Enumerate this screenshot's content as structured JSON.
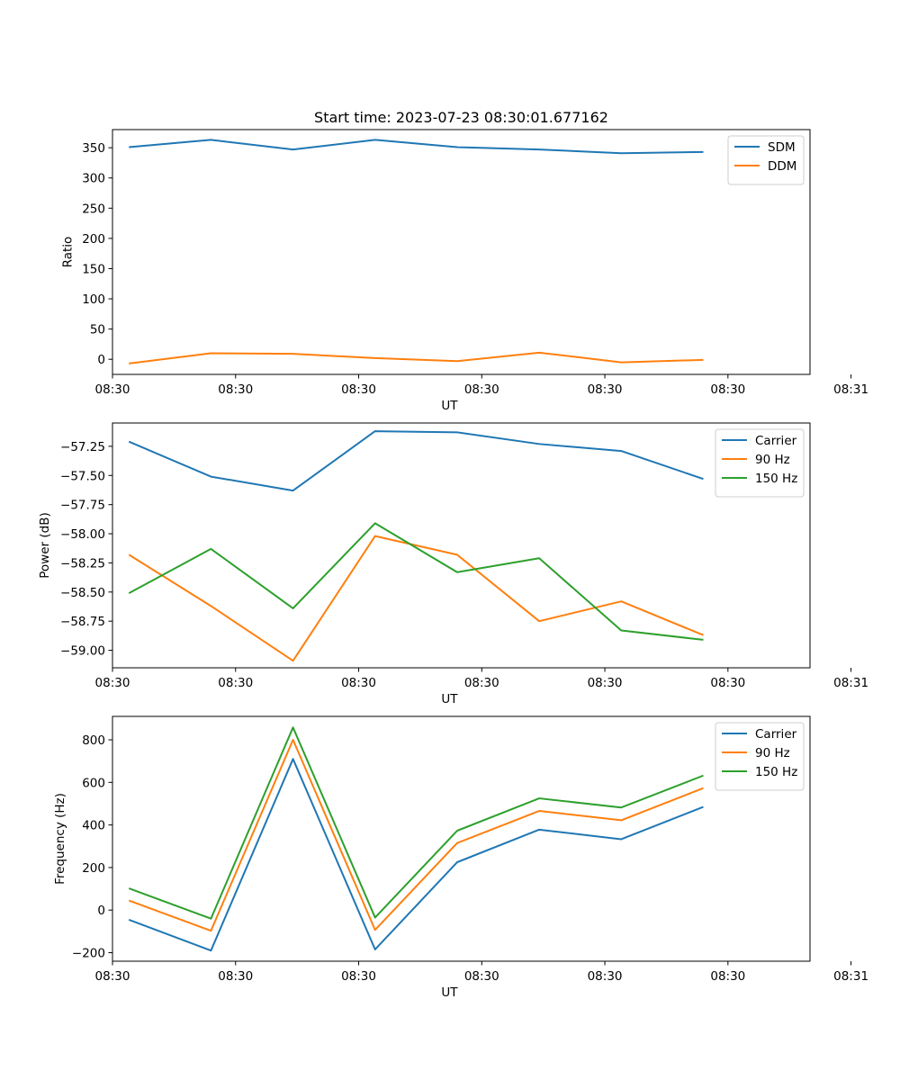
{
  "figure": {
    "title": "Start time: 2023-07-23 08:30:01.677162"
  },
  "chart_data": [
    {
      "type": "line",
      "name": "ratio",
      "xlabel": "UT",
      "ylabel": "Ratio",
      "x": [
        1,
        2,
        3,
        4,
        5,
        6,
        7,
        8
      ],
      "xlim": [
        0.8,
        9.3
      ],
      "xticks": [
        0.8,
        2.3,
        3.8,
        5.3,
        6.8,
        8.3,
        9.8
      ],
      "xtick_labels": [
        "08:30",
        "08:30",
        "08:30",
        "08:30",
        "08:30",
        "08:30",
        "08:31"
      ],
      "ylim": [
        -25,
        380
      ],
      "yticks": [
        0,
        50,
        100,
        150,
        200,
        250,
        300,
        350
      ],
      "ytick_labels": [
        "0",
        "50",
        "100",
        "150",
        "200",
        "250",
        "300",
        "350"
      ],
      "legend_position": "top-right",
      "series": [
        {
          "name": "SDM",
          "color": "#1f77b4",
          "values": [
            351,
            363,
            347,
            363,
            351,
            347,
            341,
            343
          ]
        },
        {
          "name": "DDM",
          "color": "#ff7f0e",
          "values": [
            -7,
            10,
            9,
            2,
            -3,
            11,
            -5,
            -1
          ]
        }
      ]
    },
    {
      "type": "line",
      "name": "power",
      "xlabel": "UT",
      "ylabel": "Power (dB)",
      "x": [
        1,
        2,
        3,
        4,
        5,
        6,
        7,
        8
      ],
      "xlim": [
        0.8,
        9.3
      ],
      "xticks": [
        0.8,
        2.3,
        3.8,
        5.3,
        6.8,
        8.3,
        9.8
      ],
      "xtick_labels": [
        "08:30",
        "08:30",
        "08:30",
        "08:30",
        "08:30",
        "08:30",
        "08:31"
      ],
      "ylim": [
        -59.15,
        -57.05
      ],
      "yticks": [
        -59.0,
        -58.75,
        -58.5,
        -58.25,
        -58.0,
        -57.75,
        -57.5,
        -57.25
      ],
      "ytick_labels": [
        "−59.00",
        "−58.75",
        "−58.50",
        "−58.25",
        "−58.00",
        "−57.75",
        "−57.50",
        "−57.25"
      ],
      "legend_position": "top-right",
      "series": [
        {
          "name": "Carrier",
          "color": "#1f77b4",
          "values": [
            -57.21,
            -57.51,
            -57.63,
            -57.12,
            -57.13,
            -57.23,
            -57.29,
            -57.53
          ]
        },
        {
          "name": "90 Hz",
          "color": "#ff7f0e",
          "values": [
            -58.18,
            -58.62,
            -59.09,
            -58.02,
            -58.18,
            -58.75,
            -58.58,
            -58.87
          ]
        },
        {
          "name": "150 Hz",
          "color": "#2ca02c",
          "values": [
            -58.51,
            -58.13,
            -58.64,
            -57.91,
            -58.33,
            -58.21,
            -58.83,
            -58.91
          ]
        }
      ]
    },
    {
      "type": "line",
      "name": "frequency",
      "xlabel": "UT",
      "ylabel": "Frequency (Hz)",
      "x": [
        1,
        2,
        3,
        4,
        5,
        6,
        7,
        8
      ],
      "xlim": [
        0.8,
        9.3
      ],
      "xticks": [
        0.8,
        2.3,
        3.8,
        5.3,
        6.8,
        8.3,
        9.8
      ],
      "xtick_labels": [
        "08:30",
        "08:30",
        "08:30",
        "08:30",
        "08:30",
        "08:30",
        "08:31"
      ],
      "ylim": [
        -240,
        910
      ],
      "yticks": [
        -200,
        0,
        200,
        400,
        600,
        800
      ],
      "ytick_labels": [
        "−200",
        "0",
        "200",
        "400",
        "600",
        "800"
      ],
      "legend_position": "top-right",
      "series": [
        {
          "name": "Carrier",
          "color": "#1f77b4",
          "values": [
            -45,
            -190,
            710,
            -185,
            225,
            378,
            333,
            485
          ]
        },
        {
          "name": "90 Hz",
          "color": "#ff7f0e",
          "values": [
            45,
            -97,
            800,
            -93,
            315,
            466,
            422,
            573
          ]
        },
        {
          "name": "150 Hz",
          "color": "#2ca02c",
          "values": [
            102,
            -40,
            858,
            -35,
            373,
            525,
            482,
            632
          ]
        }
      ]
    }
  ]
}
